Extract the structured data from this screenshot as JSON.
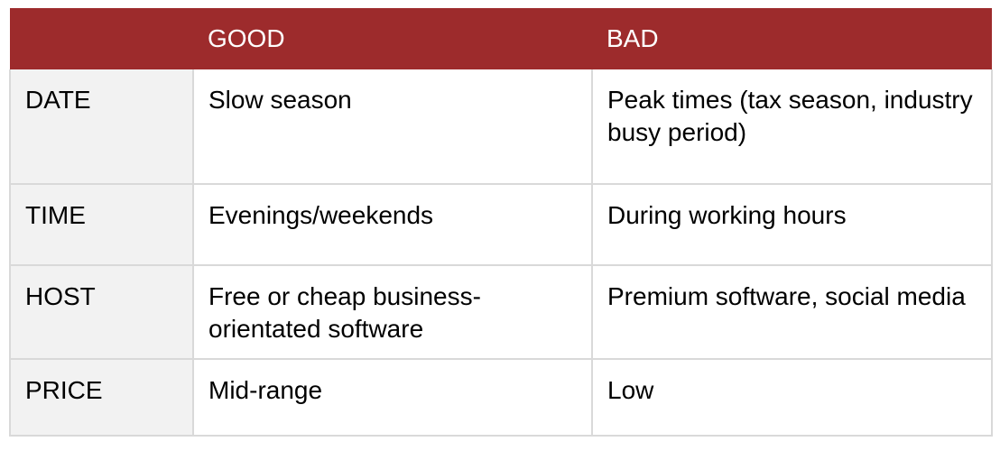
{
  "header": {
    "col0": "",
    "col1": "GOOD",
    "col2": "BAD"
  },
  "rows": [
    {
      "label": "DATE",
      "good": "Slow season",
      "bad": "Peak times (tax season, industry busy period)"
    },
    {
      "label": "TIME",
      "good": "Evenings/weekends",
      "bad": "During working hours"
    },
    {
      "label": "HOST",
      "good": "Free or cheap business-orientated software",
      "bad": "Premium software, social media"
    },
    {
      "label": "PRICE",
      "good": "Mid-range",
      "bad": "Low"
    }
  ],
  "colors": {
    "header_bg": "#9d2b2c",
    "header_text": "#ffffff",
    "label_col_bg": "#f2f2f2",
    "border": "#d9d9d9"
  }
}
